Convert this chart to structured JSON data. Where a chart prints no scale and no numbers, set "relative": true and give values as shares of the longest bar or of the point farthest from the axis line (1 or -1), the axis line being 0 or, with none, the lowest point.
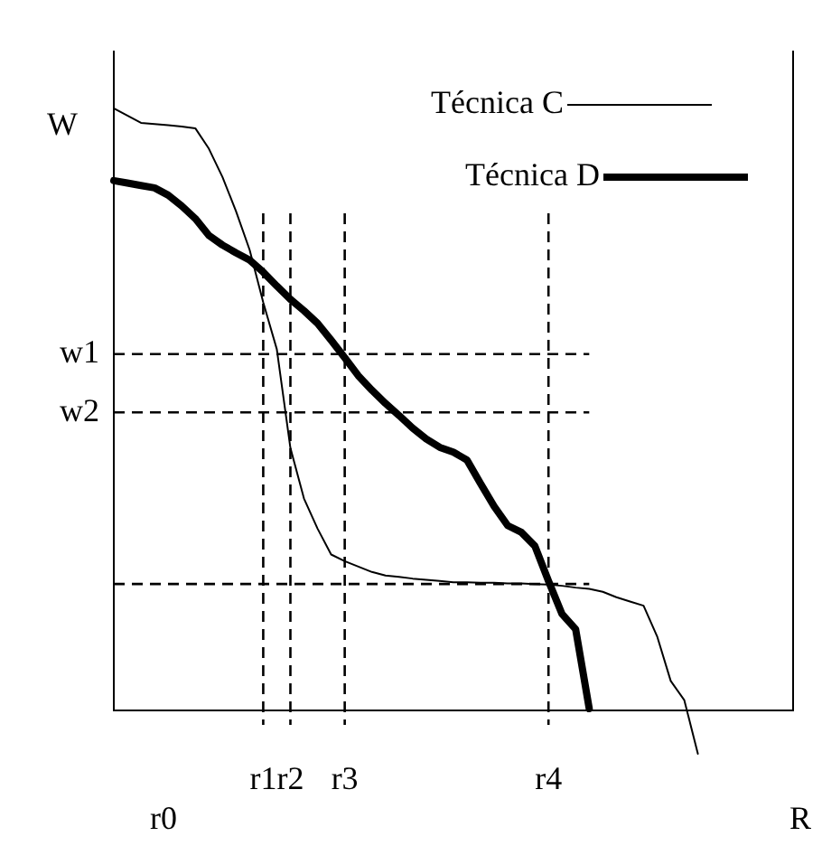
{
  "chart_data": {
    "type": "line",
    "relative": true,
    "xlabel": "R",
    "ylabel": "W",
    "legend": "top right",
    "marker": "none",
    "annotations": [
      "r0"
    ],
    "categories": [
      null,
      null,
      null,
      null,
      null,
      null,
      null,
      null,
      null,
      null,
      null,
      "r1",
      null,
      "r2",
      null,
      null,
      null,
      "r3",
      null,
      null,
      null,
      null,
      null,
      null,
      null,
      null,
      null,
      null,
      null,
      null,
      null,
      null,
      "r4",
      null,
      null,
      null,
      null,
      null,
      null,
      null,
      null,
      null,
      null,
      null
    ],
    "series": [
      {
        "name": "Técnica C",
        "color": "#000000",
        "values": [
          1.0,
          0.988,
          0.976,
          0.974,
          0.972,
          0.97,
          0.967,
          0.933,
          0.886,
          0.829,
          0.765,
          0.678,
          0.6,
          0.436,
          0.352,
          0.302,
          0.259,
          0.248,
          0.239,
          0.23,
          0.224,
          0.222,
          0.219,
          0.217,
          0.215,
          0.213,
          0.213,
          0.212,
          0.212,
          0.211,
          0.211,
          0.21,
          0.209,
          0.207,
          0.204,
          0.202,
          0.197,
          0.188,
          0.181,
          0.174,
          0.123,
          0.049,
          0.017,
          -0.072
        ]
      },
      {
        "name": "Técnica D",
        "color": "#000000",
        "values": [
          0.88,
          0.876,
          0.872,
          0.868,
          0.856,
          0.838,
          0.817,
          0.789,
          0.773,
          0.76,
          0.748,
          0.728,
          0.705,
          0.683,
          0.664,
          0.643,
          0.615,
          0.586,
          0.556,
          0.532,
          0.51,
          0.49,
          0.469,
          0.451,
          0.437,
          0.429,
          0.416,
          0.377,
          0.339,
          0.307,
          0.296,
          0.273,
          0.215,
          0.16,
          0.135,
          0.003,
          null,
          null,
          null,
          null,
          null,
          null,
          null,
          null
        ]
      }
    ],
    "ref_lines": [
      {
        "axis": "x",
        "value": "r1",
        "line_style": "dashed"
      },
      {
        "axis": "x",
        "value": "r2",
        "line_style": "dashed"
      },
      {
        "axis": "x",
        "value": "r3",
        "line_style": "dashed"
      },
      {
        "axis": "x",
        "value": "r4",
        "line_style": "dashed"
      },
      {
        "axis": "y",
        "value": 0.592,
        "label": "w1",
        "line_style": "dashed"
      },
      {
        "axis": "y",
        "value": 0.495,
        "label": "w2",
        "line_style": "dashed"
      },
      {
        "axis": "y",
        "value": 0.21,
        "line_style": "dashed"
      }
    ]
  }
}
